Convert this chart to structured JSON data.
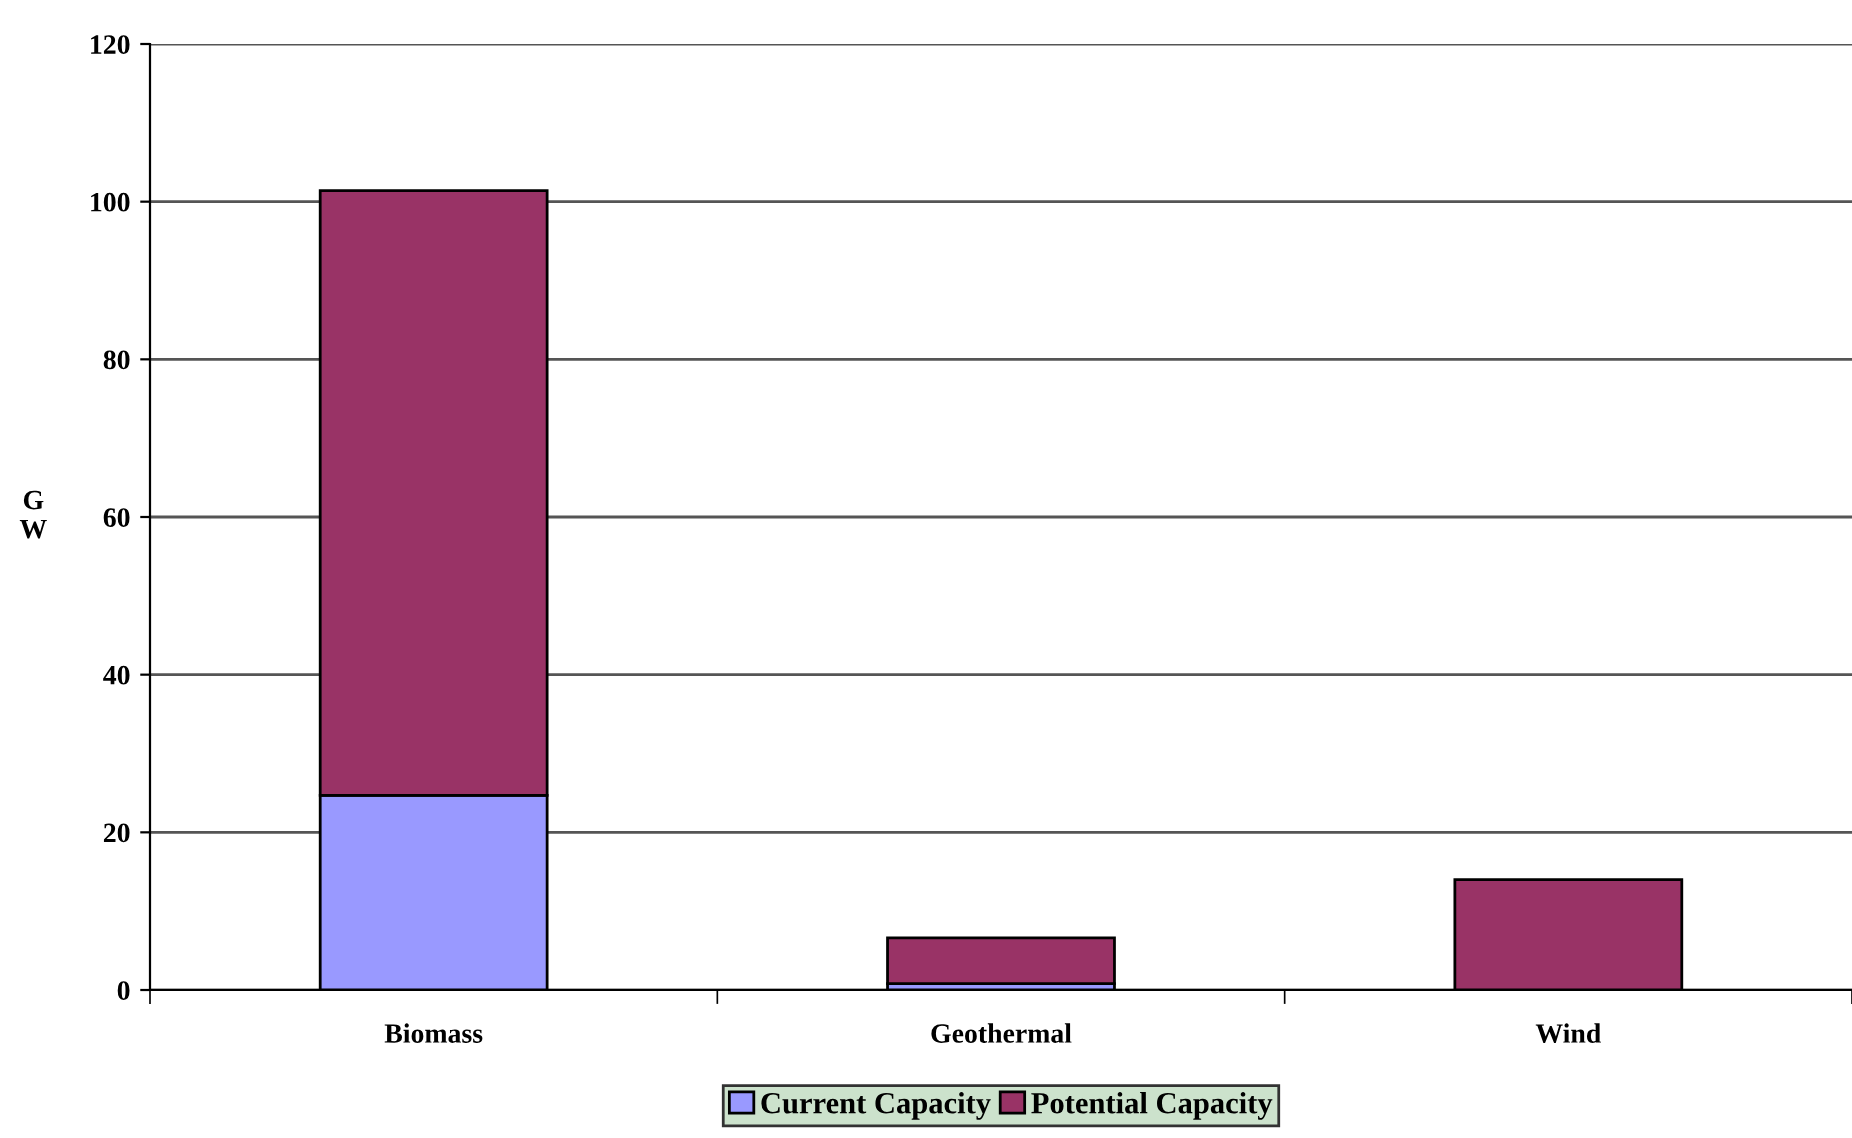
{
  "chart_data": {
    "type": "bar",
    "stacked": true,
    "ylabel": "G\nW",
    "categories": [
      "Biomass",
      "Geothermal",
      "Wind"
    ],
    "series": [
      {
        "name": "Current Capacity",
        "color": "#9999ff",
        "values": [
          24.7,
          0.8,
          0
        ]
      },
      {
        "name": "Potential Capacity",
        "color": "#993366",
        "values": [
          76.7,
          5.8,
          14.0
        ]
      }
    ],
    "ylim": [
      0,
      120
    ],
    "yticks": [
      0,
      20,
      40,
      60,
      80,
      100,
      120
    ],
    "grid": "y",
    "legend": "bottom"
  }
}
